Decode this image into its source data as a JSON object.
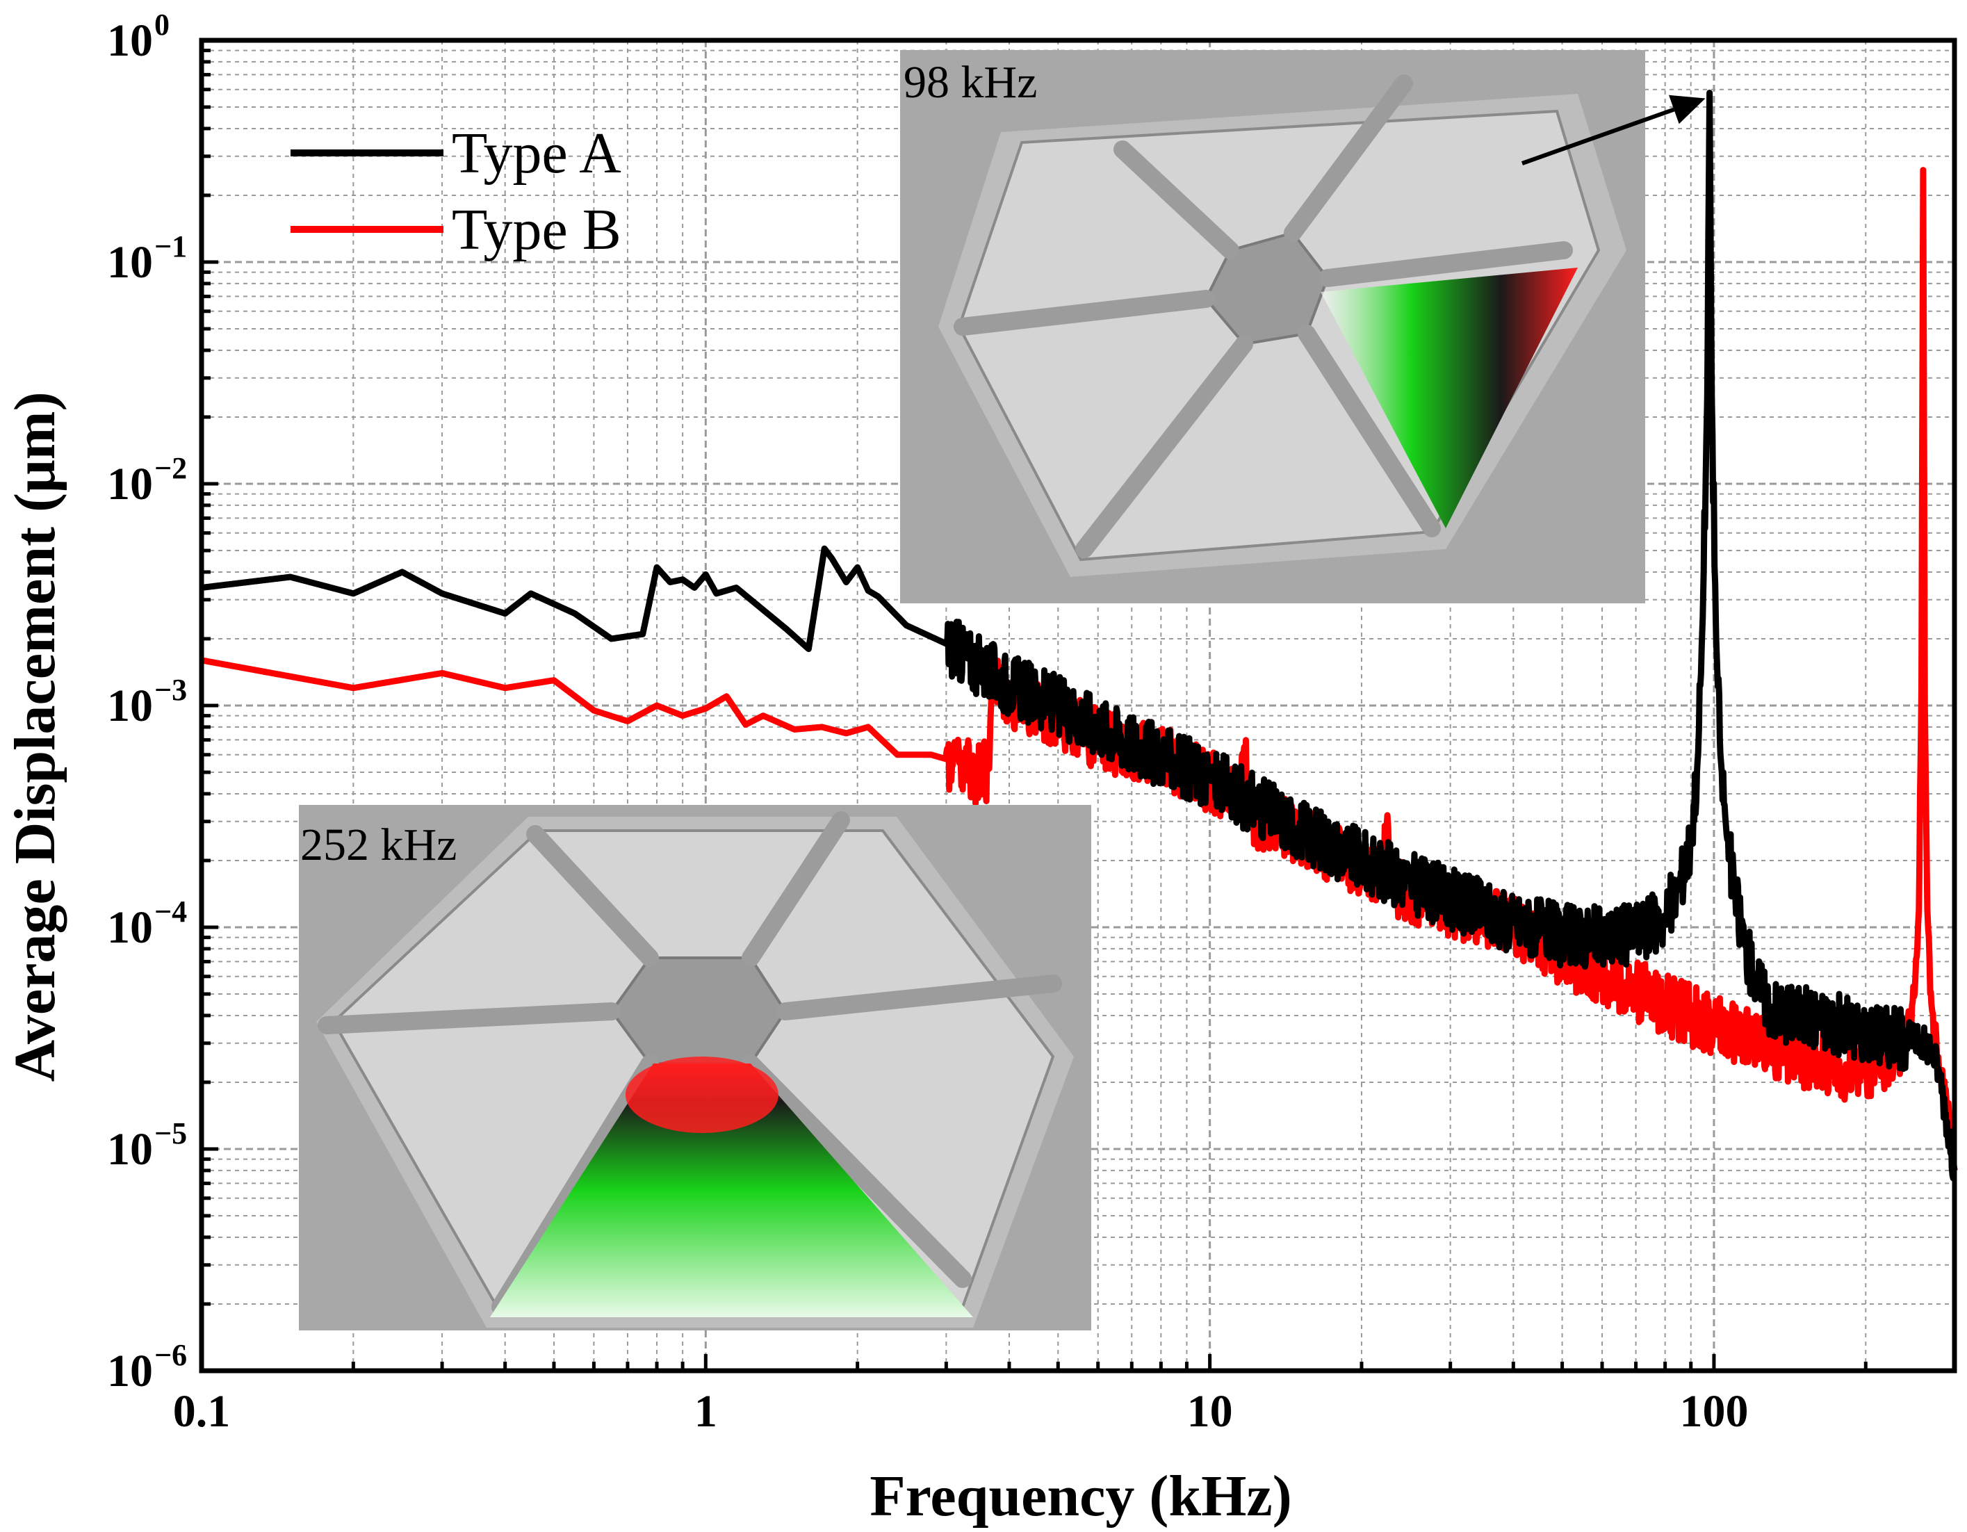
{
  "colors": {
    "type_a": "#000000",
    "type_b": "#ff0000",
    "grid": "#9a9a9a",
    "inset_bg": "#a8a8a8",
    "inset_plate": "#d4d4d4",
    "mode_green": "#19d219",
    "mode_red": "#ff1e1e"
  },
  "chart_data": {
    "type": "line",
    "xscale": "log",
    "yscale": "log",
    "xlabel": "Frequency (kHz)",
    "ylabel": "Average Displacement (μm)",
    "xlim": [
      0.1,
      300
    ],
    "ylim": [
      1e-06,
      1
    ],
    "grid": true,
    "legend_position": "top-left",
    "x_ticks": [
      {
        "value": 0.1,
        "label": "0.1"
      },
      {
        "value": 1,
        "label": "1"
      },
      {
        "value": 10,
        "label": "10"
      },
      {
        "value": 100,
        "label": "100"
      }
    ],
    "y_ticks": [
      {
        "value": 1,
        "base": "10",
        "exp": "0"
      },
      {
        "value": 0.1,
        "base": "10",
        "exp": "−1"
      },
      {
        "value": 0.01,
        "base": "10",
        "exp": "−2"
      },
      {
        "value": 0.001,
        "base": "10",
        "exp": "−3"
      },
      {
        "value": 0.0001,
        "base": "10",
        "exp": "−4"
      },
      {
        "value": 1e-05,
        "base": "10",
        "exp": "−5"
      },
      {
        "value": 1e-06,
        "base": "10",
        "exp": "−6"
      }
    ],
    "series": [
      {
        "name": "Type A",
        "color": "#000000",
        "x": [
          0.1,
          0.15,
          0.2,
          0.25,
          0.3,
          0.4,
          0.45,
          0.55,
          0.65,
          0.75,
          0.8,
          0.85,
          0.9,
          0.95,
          1.0,
          1.05,
          1.15,
          1.3,
          1.45,
          1.6,
          1.72,
          1.78,
          1.9,
          2.0,
          2.1,
          2.2,
          2.5,
          3.0,
          3.5,
          4.0,
          5.0,
          6.0,
          7.0,
          8.0,
          10,
          12,
          15,
          20,
          25,
          30,
          40,
          50,
          60,
          70,
          80,
          85,
          90,
          93,
          95,
          97,
          98,
          99,
          101,
          103,
          106,
          110,
          115,
          120,
          125,
          130,
          150,
          180,
          200,
          230,
          250,
          270,
          280,
          300
        ],
        "y": [
          0.0034,
          0.0038,
          0.0032,
          0.004,
          0.0032,
          0.0026,
          0.0032,
          0.0026,
          0.002,
          0.0021,
          0.0042,
          0.0036,
          0.0037,
          0.0034,
          0.0039,
          0.0032,
          0.0034,
          0.0027,
          0.0022,
          0.0018,
          0.0051,
          0.0046,
          0.0036,
          0.0042,
          0.0033,
          0.0031,
          0.0023,
          0.0019,
          0.0015,
          0.00125,
          0.001,
          0.00081,
          0.00067,
          0.00059,
          0.00047,
          0.00037,
          0.00028,
          0.0002,
          0.00016,
          0.000135,
          0.000105,
          9.2e-05,
          9e-05,
          9.5e-05,
          0.00011,
          0.00015,
          0.00024,
          0.0006,
          0.0025,
          0.025,
          0.58,
          0.025,
          0.002,
          0.0006,
          0.00026,
          0.00014,
          8.5e-05,
          6e-05,
          5e-05,
          4.3e-05,
          4e-05,
          3.6e-05,
          3.4e-05,
          3.2e-05,
          3.1e-05,
          2.9e-05,
          2.2e-05,
          8e-06
        ]
      },
      {
        "name": "Type B",
        "color": "#ff0000",
        "x": [
          0.1,
          0.2,
          0.3,
          0.4,
          0.5,
          0.6,
          0.7,
          0.8,
          0.9,
          1.0,
          1.1,
          1.2,
          1.3,
          1.5,
          1.7,
          1.9,
          2.1,
          2.4,
          2.8,
          3.2,
          3.5,
          3.65,
          3.7,
          4.0,
          5.0,
          6.0,
          8.0,
          10,
          11.5,
          11.7,
          12,
          15,
          20,
          22,
          22.5,
          23,
          30,
          40,
          50,
          60,
          70,
          80,
          100,
          120,
          150,
          180,
          200,
          220,
          240,
          250,
          255,
          258,
          260,
          262,
          265,
          270,
          280,
          290,
          300
        ],
        "y": [
          0.0016,
          0.0012,
          0.0014,
          0.0012,
          0.0013,
          0.00095,
          0.00085,
          0.001,
          0.0009,
          0.00097,
          0.0011,
          0.00082,
          0.0009,
          0.00078,
          0.0008,
          0.00075,
          0.0008,
          0.0006,
          0.0006,
          0.00055,
          0.00048,
          0.00052,
          0.0014,
          0.0011,
          0.00088,
          0.0007,
          0.0006,
          0.00045,
          0.00041,
          0.00065,
          0.00032,
          0.00026,
          0.00019,
          0.00016,
          0.00032,
          0.00015,
          0.000125,
          0.0001,
          7.5e-05,
          6e-05,
          5.2e-05,
          4.5e-05,
          3.6e-05,
          3.1e-05,
          2.6e-05,
          2.3e-05,
          2.2e-05,
          2.6e-05,
          3.2e-05,
          5e-05,
          0.00012,
          0.0012,
          0.26,
          0.001,
          0.00012,
          4.5e-05,
          2.2e-05,
          1.6e-05,
          8e-06
        ]
      }
    ],
    "annotations": [
      {
        "text": "98 kHz",
        "points_to": {
          "x": 98,
          "y": 0.58
        }
      },
      {
        "text": "252 kHz"
      }
    ]
  },
  "legend": {
    "type_a_label": "Type A",
    "type_b_label": "Type B"
  },
  "insets": {
    "upper_label": "98 kHz",
    "lower_label": "252 kHz"
  }
}
